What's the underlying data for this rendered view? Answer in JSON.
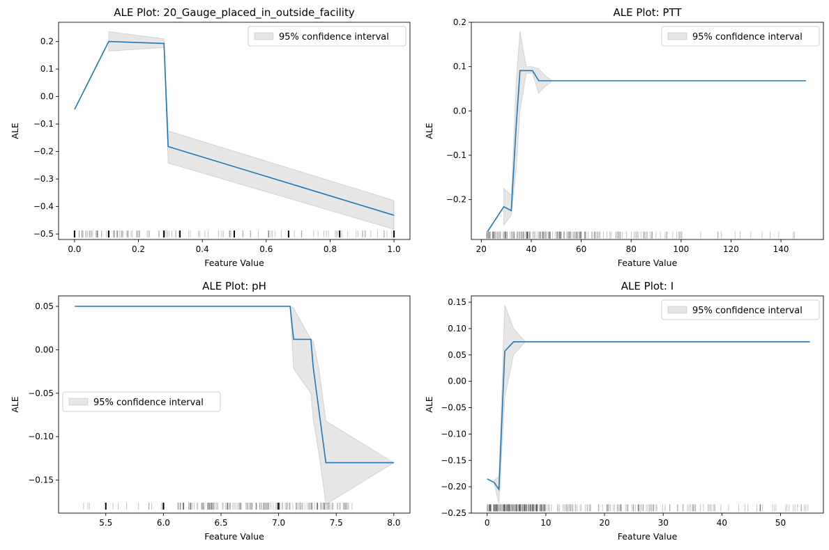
{
  "figure": {
    "xlabel_common": "Feature Value",
    "ylabel_common": "ALE"
  },
  "chart_data": [
    {
      "type": "line",
      "title": "ALE Plot: 20_Gauge_placed_in_outside_facility",
      "xlabel": "Feature Value",
      "ylabel": "ALE",
      "xlim": [
        -0.05,
        1.05
      ],
      "ylim": [
        -0.52,
        0.27
      ],
      "xticks": [
        0.0,
        0.2,
        0.4,
        0.6,
        0.8,
        1.0
      ],
      "xtick_labels": [
        "0.0",
        "0.2",
        "0.4",
        "0.6",
        "0.8",
        "1.0"
      ],
      "yticks": [
        0.2,
        0.1,
        0.0,
        -0.1,
        -0.2,
        -0.3,
        -0.4,
        -0.5
      ],
      "ytick_labels": [
        "0.2",
        "0.1",
        "0.0",
        "−0.1",
        "−0.2",
        "−0.3",
        "−0.4",
        "−0.5"
      ],
      "legend": {
        "label": "95% confidence interval",
        "location": "upper-right"
      },
      "series": [
        {
          "name": "ALE",
          "x": [
            0.0,
            0.107,
            0.28,
            0.293,
            1.0
          ],
          "y": [
            -0.047,
            0.2,
            0.193,
            -0.182,
            -0.432
          ]
        }
      ],
      "ci": {
        "x": [
          0.107,
          0.28,
          0.293,
          1.0
        ],
        "lower": [
          0.165,
          0.178,
          -0.242,
          -0.483
        ],
        "upper": [
          0.236,
          0.21,
          -0.125,
          -0.378
        ]
      },
      "rug": {
        "y": -0.5,
        "dense": [
          [
            0.0,
            0.3,
            60
          ],
          [
            0.3,
            1.0,
            55
          ]
        ],
        "bold": [
          0.0,
          0.107,
          0.28,
          0.33,
          0.5,
          0.67,
          0.83,
          1.0
        ]
      }
    },
    {
      "type": "line",
      "title": "ALE Plot: PTT",
      "xlabel": "Feature Value",
      "ylabel": "ALE",
      "xlim": [
        16,
        157
      ],
      "ylim": [
        -0.29,
        0.2
      ],
      "xticks": [
        20,
        40,
        60,
        80,
        100,
        120,
        140
      ],
      "xtick_labels": [
        "20",
        "40",
        "60",
        "80",
        "100",
        "120",
        "140"
      ],
      "yticks": [
        0.2,
        0.1,
        0.0,
        -0.1,
        -0.2
      ],
      "ytick_labels": [
        "0.2",
        "0.1",
        "0.0",
        "−0.1",
        "−0.2"
      ],
      "legend": {
        "label": "95% confidence interval",
        "location": "upper-right"
      },
      "series": [
        {
          "name": "ALE",
          "x": [
            22.5,
            29.0,
            32.0,
            34.0,
            35.5,
            38.0,
            40.5,
            43.0,
            45.5,
            48.0,
            150.0
          ],
          "y": [
            -0.272,
            -0.216,
            -0.225,
            -0.03,
            0.091,
            0.091,
            0.091,
            0.068,
            0.068,
            0.068,
            0.068
          ]
        }
      ],
      "ci": {
        "x": [
          29.0,
          32.0,
          34.0,
          35.5,
          38.0,
          40.5,
          43.0,
          45.5,
          48.0
        ],
        "lower": [
          -0.258,
          -0.235,
          -0.13,
          0.0,
          0.085,
          0.085,
          0.04,
          0.055,
          0.065
        ],
        "upper": [
          -0.175,
          -0.19,
          0.07,
          0.18,
          0.1,
          0.1,
          0.095,
          0.08,
          0.07
        ]
      },
      "rug": {
        "y": -0.28,
        "dense": [
          [
            22,
            60,
            150
          ],
          [
            60,
            100,
            60
          ],
          [
            100,
            150,
            14
          ]
        ],
        "bold": []
      }
    },
    {
      "type": "line",
      "title": "ALE Plot: pH",
      "xlabel": "Feature Value",
      "ylabel": "ALE",
      "xlim": [
        5.09,
        8.14
      ],
      "ylim": [
        -0.188,
        0.062
      ],
      "xticks": [
        5.5,
        6.0,
        6.5,
        7.0,
        7.5,
        8.0
      ],
      "xtick_labels": [
        "5.5",
        "6.0",
        "6.5",
        "7.0",
        "7.5",
        "8.0"
      ],
      "yticks": [
        0.05,
        0.0,
        -0.05,
        -0.1,
        -0.15
      ],
      "ytick_labels": [
        "0.05",
        "0.00",
        "−0.05",
        "−0.10",
        "−0.15"
      ],
      "legend": {
        "label": "95% confidence interval",
        "location": "center-left"
      },
      "series": [
        {
          "name": "ALE",
          "x": [
            5.23,
            7.1,
            7.13,
            7.28,
            7.3,
            7.41,
            8.0
          ],
          "y": [
            0.05,
            0.05,
            0.012,
            0.012,
            -0.02,
            -0.13,
            -0.13
          ]
        }
      ],
      "ci": {
        "x": [
          7.1,
          7.13,
          7.28,
          7.3,
          7.35,
          7.41,
          8.0
        ],
        "lower": [
          0.05,
          -0.022,
          -0.05,
          -0.08,
          -0.12,
          -0.178,
          -0.13
        ],
        "upper": [
          0.05,
          0.048,
          0.012,
          0.01,
          -0.022,
          -0.082,
          -0.13
        ]
      },
      "rug": {
        "y": -0.18,
        "dense": [
          [
            6.1,
            7.65,
            180
          ],
          [
            5.3,
            6.1,
            12
          ]
        ],
        "bold": [
          5.5,
          6.0,
          7.0
        ]
      }
    },
    {
      "type": "line",
      "title": "ALE Plot: I",
      "xlabel": "Feature Value",
      "ylabel": "ALE",
      "xlim": [
        -2.7,
        57.3
      ],
      "ylim": [
        -0.25,
        0.162
      ],
      "xticks": [
        0,
        10,
        20,
        30,
        40,
        50
      ],
      "xtick_labels": [
        "0",
        "10",
        "20",
        "30",
        "40",
        "50"
      ],
      "yticks": [
        0.15,
        0.1,
        0.05,
        0.0,
        -0.05,
        -0.1,
        -0.15,
        -0.2,
        -0.25
      ],
      "ytick_labels": [
        "0.15",
        "0.10",
        "0.05",
        "0.00",
        "−0.05",
        "−0.10",
        "−0.15",
        "−0.20",
        "−0.25"
      ],
      "legend": {
        "label": "95% confidence interval",
        "location": "upper-right"
      },
      "series": [
        {
          "name": "ALE",
          "x": [
            0.0,
            1.2,
            2.0,
            3.0,
            4.5,
            6.5,
            55.0
          ],
          "y": [
            -0.185,
            -0.192,
            -0.205,
            0.057,
            0.075,
            0.075,
            0.075
          ]
        }
      ],
      "ci": {
        "x": [
          1.2,
          2.0,
          3.0,
          4.5,
          6.5
        ],
        "lower": [
          -0.195,
          -0.232,
          -0.03,
          0.05,
          0.075
        ],
        "upper": [
          -0.188,
          -0.18,
          0.145,
          0.1,
          0.075
        ]
      },
      "rug": {
        "y": -0.24,
        "dense": [
          [
            0,
            10,
            180
          ],
          [
            10,
            30,
            80
          ],
          [
            30,
            55,
            50
          ]
        ],
        "bold": []
      }
    }
  ]
}
